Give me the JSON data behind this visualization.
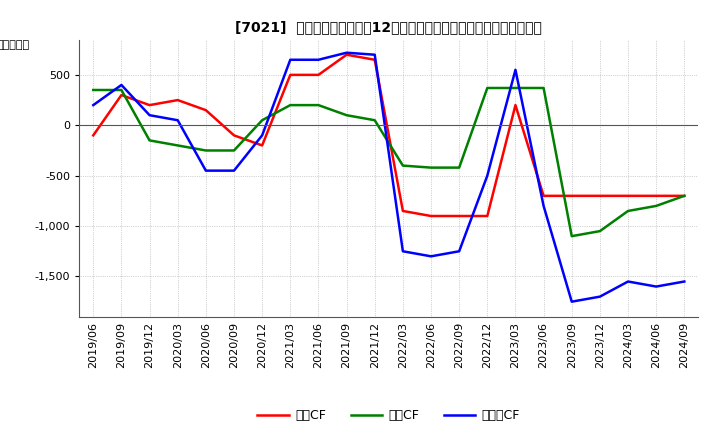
{
  "title": "[7021]  キャッシュフローの12か月移動合計の対前年同期増減額の推移",
  "ylabel": "（百万円）",
  "colors": {
    "eigyo": "#ff0000",
    "toshi": "#008000",
    "free": "#0000ff"
  },
  "legend_labels": [
    "営業CF",
    "投資CF",
    "フリーCF"
  ],
  "x_labels": [
    "2019/06",
    "2019/09",
    "2019/12",
    "2020/03",
    "2020/06",
    "2020/09",
    "2020/12",
    "2021/03",
    "2021/06",
    "2021/09",
    "2021/12",
    "2022/03",
    "2022/06",
    "2022/09",
    "2022/12",
    "2023/03",
    "2023/06",
    "2023/09",
    "2023/12",
    "2024/03",
    "2024/06",
    "2024/09"
  ],
  "eigyo_cf": [
    -100,
    300,
    200,
    250,
    150,
    -100,
    -200,
    500,
    500,
    700,
    650,
    -850,
    -900,
    -900,
    -900,
    200,
    -700,
    -700,
    -700,
    -700,
    -700,
    -700
  ],
  "toshi_cf": [
    350,
    350,
    -150,
    -200,
    -250,
    -250,
    50,
    200,
    200,
    100,
    50,
    -400,
    -420,
    -420,
    370,
    370,
    370,
    -1100,
    -1050,
    -850,
    -800,
    -700
  ],
  "free_cf": [
    200,
    400,
    100,
    50,
    -450,
    -450,
    -100,
    650,
    650,
    720,
    700,
    -1250,
    -1300,
    -1250,
    -500,
    550,
    -800,
    -1750,
    -1700,
    -1550,
    -1600,
    -1550
  ],
  "ylim": [
    -1900,
    850
  ],
  "yticks": [
    500,
    0,
    -500,
    -1000,
    -1500
  ],
  "grid_color": "#aaaaaa",
  "background_color": "#ffffff"
}
